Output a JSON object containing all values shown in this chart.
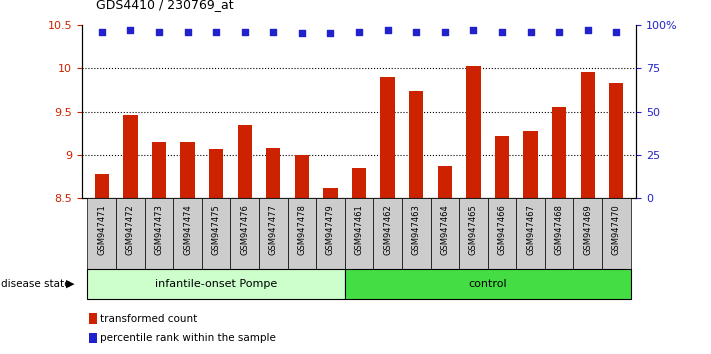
{
  "title": "GDS4410 / 230769_at",
  "samples": [
    "GSM947471",
    "GSM947472",
    "GSM947473",
    "GSM947474",
    "GSM947475",
    "GSM947476",
    "GSM947477",
    "GSM947478",
    "GSM947479",
    "GSM947461",
    "GSM947462",
    "GSM947463",
    "GSM947464",
    "GSM947465",
    "GSM947466",
    "GSM947467",
    "GSM947468",
    "GSM947469",
    "GSM947470"
  ],
  "bar_values": [
    8.78,
    9.46,
    9.15,
    9.15,
    9.07,
    9.35,
    9.08,
    9.0,
    8.62,
    8.85,
    9.9,
    9.74,
    8.87,
    10.02,
    9.22,
    9.28,
    9.55,
    9.95,
    9.83
  ],
  "percentile_values": [
    96,
    97,
    96,
    96,
    96,
    96,
    96,
    95,
    95,
    96,
    97,
    96,
    96,
    97,
    96,
    96,
    96,
    97,
    96
  ],
  "bar_color": "#cc2200",
  "dot_color": "#2222cc",
  "ylim_left": [
    8.5,
    10.5
  ],
  "ylim_right": [
    0,
    100
  ],
  "yticks_left": [
    8.5,
    9.0,
    9.5,
    10.0,
    10.5
  ],
  "ytick_labels_left": [
    "8.5",
    "9",
    "9.5",
    "10",
    "10.5"
  ],
  "yticks_right": [
    0,
    25,
    50,
    75,
    100
  ],
  "ytick_labels_right": [
    "0",
    "25",
    "50",
    "75",
    "100%"
  ],
  "grid_values": [
    9.0,
    9.5,
    10.0
  ],
  "groups": [
    {
      "label": "infantile-onset Pompe",
      "start": 0,
      "end": 9,
      "color": "#ccffcc"
    },
    {
      "label": "control",
      "start": 9,
      "end": 19,
      "color": "#44dd44"
    }
  ],
  "disease_state_label": "disease state",
  "legend_bar_label": "transformed count",
  "legend_dot_label": "percentile rank within the sample",
  "background_color": "#ffffff",
  "cell_bg_color": "#cccccc",
  "bar_width": 0.5
}
